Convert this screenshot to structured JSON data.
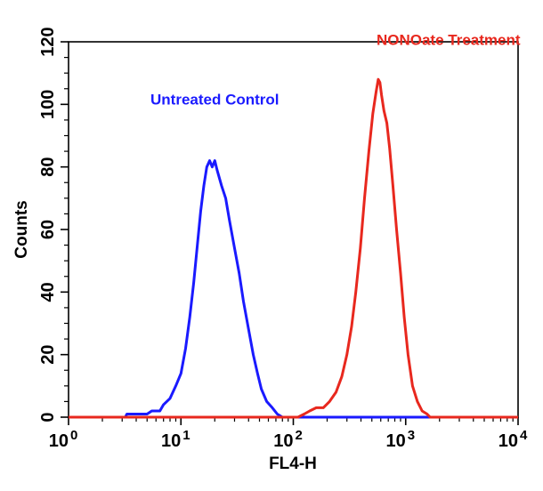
{
  "chart_data": {
    "type": "line",
    "title": "",
    "xlabel": "FL4-H",
    "ylabel": "Counts",
    "x_scale": "log",
    "xlim": [
      1,
      10000
    ],
    "ylim": [
      0,
      120
    ],
    "x_ticks": [
      {
        "base": "10",
        "exp": "0",
        "value": 1
      },
      {
        "base": "10",
        "exp": "1",
        "value": 10
      },
      {
        "base": "10",
        "exp": "2",
        "value": 100
      },
      {
        "base": "10",
        "exp": "3",
        "value": 1000
      },
      {
        "base": "10",
        "exp": "4",
        "value": 10000
      }
    ],
    "y_ticks": [
      0,
      20,
      40,
      60,
      80,
      100,
      120
    ],
    "grid": false,
    "series": [
      {
        "name": "Untreated Control",
        "color": "#1a1aff",
        "points": [
          [
            1,
            0
          ],
          [
            3.2,
            0
          ],
          [
            3.3,
            1
          ],
          [
            5,
            1
          ],
          [
            5.5,
            2
          ],
          [
            6.5,
            2
          ],
          [
            7,
            4
          ],
          [
            8,
            6
          ],
          [
            9,
            10
          ],
          [
            10,
            14
          ],
          [
            11,
            22
          ],
          [
            12,
            32
          ],
          [
            13,
            43
          ],
          [
            14,
            55
          ],
          [
            15,
            66
          ],
          [
            16,
            74
          ],
          [
            17,
            80
          ],
          [
            18,
            82
          ],
          [
            19,
            80
          ],
          [
            20,
            82
          ],
          [
            21,
            79
          ],
          [
            23,
            74
          ],
          [
            25,
            70
          ],
          [
            27,
            63
          ],
          [
            30,
            54
          ],
          [
            33,
            46
          ],
          [
            36,
            37
          ],
          [
            40,
            28
          ],
          [
            44,
            20
          ],
          [
            48,
            14
          ],
          [
            52,
            9
          ],
          [
            58,
            5
          ],
          [
            65,
            3
          ],
          [
            72,
            1
          ],
          [
            80,
            0
          ],
          [
            10000,
            0
          ]
        ]
      },
      {
        "name": "NONOate Treatment",
        "color": "#e8281e",
        "points": [
          [
            1,
            0
          ],
          [
            110,
            0
          ],
          [
            125,
            1
          ],
          [
            140,
            2
          ],
          [
            160,
            3
          ],
          [
            185,
            3
          ],
          [
            210,
            5
          ],
          [
            240,
            8
          ],
          [
            270,
            13
          ],
          [
            300,
            20
          ],
          [
            330,
            29
          ],
          [
            360,
            40
          ],
          [
            395,
            54
          ],
          [
            430,
            70
          ],
          [
            470,
            85
          ],
          [
            510,
            97
          ],
          [
            545,
            104
          ],
          [
            570,
            108
          ],
          [
            590,
            107
          ],
          [
            610,
            103
          ],
          [
            640,
            98
          ],
          [
            680,
            94
          ],
          [
            720,
            86
          ],
          [
            770,
            74
          ],
          [
            830,
            60
          ],
          [
            900,
            46
          ],
          [
            970,
            32
          ],
          [
            1050,
            20
          ],
          [
            1150,
            10
          ],
          [
            1270,
            5
          ],
          [
            1400,
            2
          ],
          [
            1550,
            1
          ],
          [
            1650,
            0
          ],
          [
            10000,
            0
          ]
        ]
      }
    ],
    "annotations": [
      {
        "text": "Untreated Control",
        "color": "#1a1aff",
        "x": 20,
        "y": 100
      },
      {
        "text": "NONOate Treatment",
        "color": "#e8281e",
        "x": 2400,
        "y": 119
      }
    ]
  }
}
